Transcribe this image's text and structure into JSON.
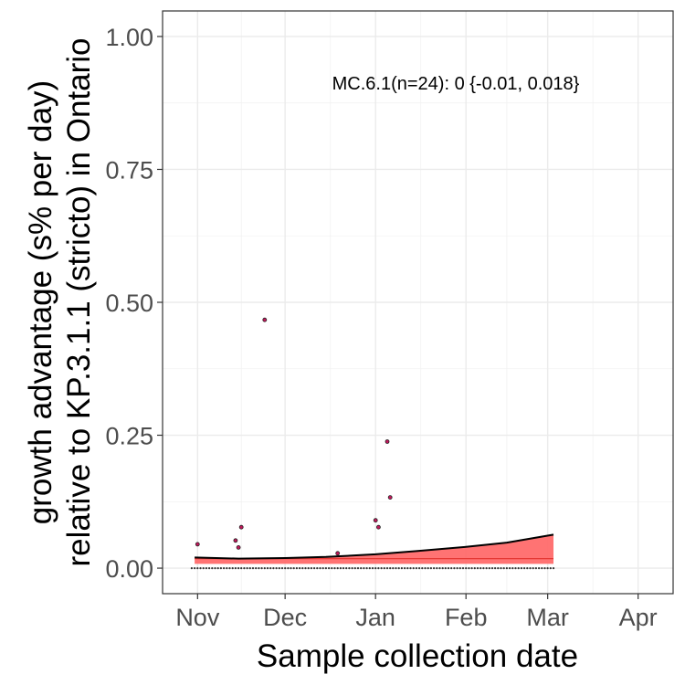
{
  "chart_data": {
    "type": "scatter",
    "title": "",
    "xlabel": "Sample collection date",
    "ylabel_lines": [
      "growth advantage (s% per day)",
      "relative to KP.3.1.1 (stricto) in Ontario"
    ],
    "xlim": [
      "2024-10-20",
      "2025-04-13"
    ],
    "ylim": [
      -0.048,
      1.048
    ],
    "x_ticks": [
      {
        "date": "2024-11-01",
        "label": "Nov"
      },
      {
        "date": "2024-12-01",
        "label": "Dec"
      },
      {
        "date": "2025-01-01",
        "label": "Jan"
      },
      {
        "date": "2025-02-01",
        "label": "Feb"
      },
      {
        "date": "2025-03-01",
        "label": "Mar"
      },
      {
        "date": "2025-04-01",
        "label": "Apr"
      }
    ],
    "y_ticks": [
      {
        "value": 0.0,
        "label": "0.00"
      },
      {
        "value": 0.25,
        "label": "0.25"
      },
      {
        "value": 0.5,
        "label": "0.50"
      },
      {
        "value": 0.75,
        "label": "0.75"
      },
      {
        "value": 1.0,
        "label": "1.00"
      }
    ],
    "grid": true,
    "annotation": "MC.6.1(n=24): 0 {-0.01, 0.018}",
    "band": {
      "name": "",
      "color": "#ff6b6b",
      "x": [
        "2024-10-31",
        "2024-11-15",
        "2024-12-01",
        "2024-12-15",
        "2025-01-01",
        "2025-01-15",
        "2025-02-01",
        "2025-02-15",
        "2025-03-03"
      ],
      "fit": [
        0.018,
        0.018,
        0.018,
        0.018,
        0.018,
        0.018,
        0.018,
        0.018,
        0.018
      ],
      "lower": [
        0.008,
        0.008,
        0.008,
        0.008,
        0.008,
        0.008,
        0.008,
        0.008,
        0.008
      ],
      "upper": [
        0.02,
        0.018,
        0.019,
        0.021,
        0.026,
        0.032,
        0.04,
        0.048,
        0.063
      ]
    },
    "points": [
      {
        "x": "2024-11-01",
        "y": 0.045
      },
      {
        "x": "2024-11-14",
        "y": 0.052
      },
      {
        "x": "2024-11-15",
        "y": 0.039
      },
      {
        "x": "2024-11-16",
        "y": 0.077
      },
      {
        "x": "2024-11-24",
        "y": 0.467
      },
      {
        "x": "2024-12-19",
        "y": 0.028
      },
      {
        "x": "2025-01-01",
        "y": 0.09
      },
      {
        "x": "2025-01-02",
        "y": 0.077
      },
      {
        "x": "2025-01-05",
        "y": 0.238
      },
      {
        "x": "2025-01-06",
        "y": 0.133
      }
    ],
    "zero_points_range": [
      "2024-10-30",
      "2025-03-03"
    ],
    "point_color": "#c2185b"
  }
}
